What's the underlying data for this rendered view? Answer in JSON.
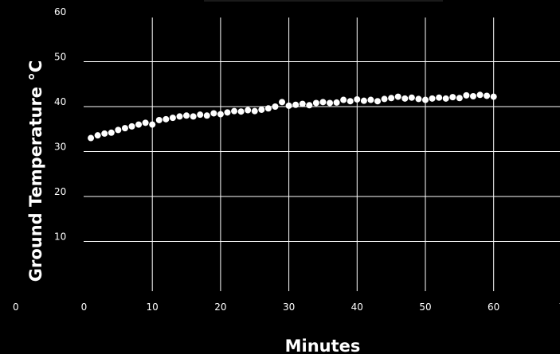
{
  "chart_data": {
    "type": "scatter",
    "title": "",
    "xlabel": "Minutes",
    "ylabel": "Ground Temperature °C",
    "xlim": [
      -10,
      70
    ],
    "ylim": [
      0,
      60
    ],
    "x_tick_labels": [
      "0",
      "0",
      "10",
      "20",
      "30",
      "40",
      "50",
      "60",
      "7"
    ],
    "y_tick_labels": [
      "10",
      "20",
      "30",
      "40",
      "50",
      "60"
    ],
    "grid": true,
    "colors": {
      "background": "#000000",
      "grid": "#ffffff",
      "points": "#ffffff",
      "text": "#ffffff"
    },
    "series": [
      {
        "values_x": [
          1,
          2,
          3,
          4,
          5,
          6,
          7,
          8,
          9,
          10,
          11,
          12,
          13,
          14,
          15,
          16,
          17,
          18,
          19,
          20,
          21,
          22,
          23,
          24,
          25,
          26,
          27,
          28,
          29,
          30,
          31,
          32,
          33,
          34,
          35,
          36,
          37,
          38,
          39,
          40,
          41,
          42,
          43,
          44,
          45,
          46,
          47,
          48,
          49,
          50,
          51,
          52,
          53,
          54,
          55,
          56,
          57,
          58,
          59,
          60
        ],
        "values_y": [
          33.0,
          33.6,
          34.0,
          34.2,
          34.8,
          35.2,
          35.6,
          36.0,
          36.4,
          36.0,
          37.0,
          37.2,
          37.5,
          37.8,
          38.0,
          37.8,
          38.2,
          38.0,
          38.5,
          38.3,
          38.7,
          39.0,
          38.9,
          39.2,
          39.0,
          39.3,
          39.6,
          40.0,
          41.0,
          40.2,
          40.4,
          40.6,
          40.3,
          40.8,
          41.0,
          40.8,
          40.9,
          41.5,
          41.2,
          41.6,
          41.3,
          41.5,
          41.2,
          41.7,
          41.9,
          42.2,
          41.8,
          42.0,
          41.7,
          41.5,
          41.8,
          42.0,
          41.8,
          42.1,
          41.9,
          42.5,
          42.3,
          42.6,
          42.4,
          42.2
        ]
      }
    ]
  }
}
